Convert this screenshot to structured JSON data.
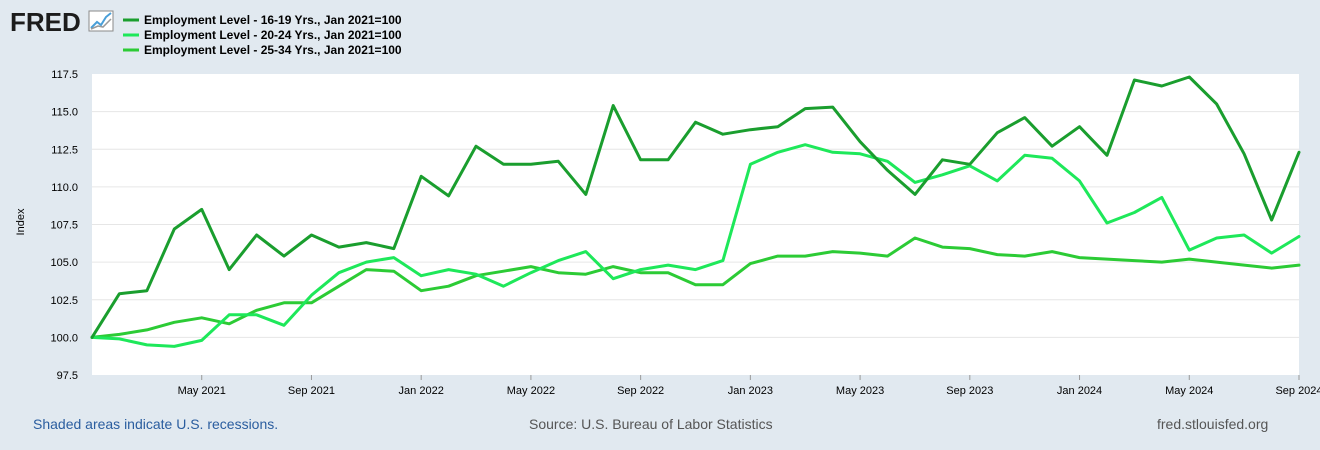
{
  "branding": {
    "logo_text": "FRED",
    "logo_icon": "line-chart-icon"
  },
  "footer": {
    "note": "Shaded areas indicate U.S. recessions.",
    "source": "Source: U.S. Bureau of Labor Statistics",
    "site": "fred.stlouisfed.org"
  },
  "colors": {
    "background": "#e1e9f0",
    "plot_background": "#ffffff",
    "gridline": "#e6e6e6",
    "series_16_19": "#1a9e2e",
    "series_20_24": "#1ee85a",
    "series_25_34": "#2ccb35"
  },
  "chart_data": {
    "type": "line",
    "title": "",
    "xlabel": "",
    "ylabel": "Index",
    "ylim": [
      97.5,
      117.5
    ],
    "yticks": [
      97.5,
      100.0,
      102.5,
      105.0,
      107.5,
      110.0,
      112.5,
      115.0,
      117.5
    ],
    "ytick_labels": [
      "97.5",
      "100.0",
      "102.5",
      "105.0",
      "107.5",
      "110.0",
      "112.5",
      "115.0",
      "117.5"
    ],
    "xticks": [
      {
        "index": 4,
        "label": "May 2021"
      },
      {
        "index": 8,
        "label": "Sep 2021"
      },
      {
        "index": 12,
        "label": "Jan 2022"
      },
      {
        "index": 16,
        "label": "May 2022"
      },
      {
        "index": 20,
        "label": "Sep 2022"
      },
      {
        "index": 24,
        "label": "Jan 2023"
      },
      {
        "index": 28,
        "label": "May 2023"
      },
      {
        "index": 32,
        "label": "Sep 2023"
      },
      {
        "index": 36,
        "label": "Jan 2024"
      },
      {
        "index": 40,
        "label": "May 2024"
      },
      {
        "index": 44,
        "label": "Sep 2024"
      }
    ],
    "x_start": "Jan 2021",
    "x_end": "Sep 2024",
    "grid": true,
    "legend_position": "top-left",
    "series": [
      {
        "name": "Employment Level - 16-19 Yrs., Jan 2021=100",
        "color_key": "series_16_19",
        "values": [
          100.0,
          102.9,
          103.1,
          107.2,
          108.5,
          104.5,
          106.8,
          105.4,
          106.8,
          106.0,
          106.3,
          105.9,
          110.7,
          109.4,
          112.7,
          111.5,
          111.5,
          111.7,
          109.5,
          115.4,
          111.8,
          111.8,
          114.3,
          113.5,
          113.8,
          114.0,
          115.2,
          115.3,
          113.0,
          111.1,
          109.5,
          111.8,
          111.5,
          113.6,
          114.6,
          112.7,
          114.0,
          112.1,
          117.1,
          116.7,
          117.3,
          115.5,
          112.2,
          107.8,
          112.3
        ]
      },
      {
        "name": "Employment Level - 20-24 Yrs., Jan 2021=100",
        "color_key": "series_20_24",
        "values": [
          100.0,
          99.9,
          99.5,
          99.4,
          99.8,
          101.5,
          101.5,
          100.8,
          102.8,
          104.3,
          105.0,
          105.3,
          104.1,
          104.5,
          104.2,
          103.4,
          104.3,
          105.1,
          105.7,
          103.9,
          104.5,
          104.8,
          104.5,
          105.1,
          111.5,
          112.3,
          112.8,
          112.3,
          112.2,
          111.7,
          110.3,
          110.8,
          111.4,
          110.4,
          112.1,
          111.9,
          110.4,
          107.6,
          108.3,
          109.3,
          105.8,
          106.6,
          106.8,
          105.6,
          106.7
        ]
      },
      {
        "name": "Employment Level - 25-34 Yrs., Jan 2021=100",
        "color_key": "series_25_34",
        "values": [
          100.0,
          100.2,
          100.5,
          101.0,
          101.3,
          100.9,
          101.8,
          102.3,
          102.3,
          103.4,
          104.5,
          104.4,
          103.1,
          103.4,
          104.1,
          104.4,
          104.7,
          104.3,
          104.2,
          104.7,
          104.3,
          104.3,
          103.5,
          103.5,
          104.9,
          105.4,
          105.4,
          105.7,
          105.6,
          105.4,
          106.6,
          106.0,
          105.9,
          105.5,
          105.4,
          105.7,
          105.3,
          105.2,
          105.1,
          105.0,
          105.2,
          105.0,
          104.8,
          104.6,
          104.8
        ]
      }
    ]
  }
}
